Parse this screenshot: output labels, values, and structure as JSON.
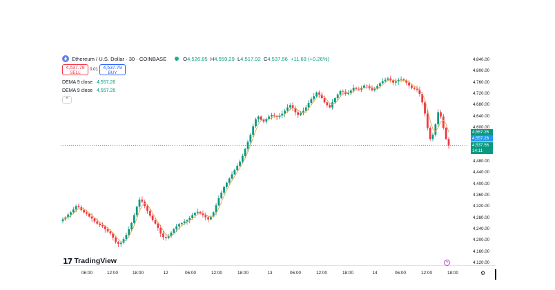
{
  "header": {
    "symbol": "Ethereum / U.S. Dollar · 30 · COINBASE",
    "open_key": "O",
    "open": "4,526.85",
    "high_key": "H",
    "high": "4,559.29",
    "low_key": "L",
    "low": "4,517.92",
    "close_key": "C",
    "close": "4,537.56",
    "change": "+11.69 (+0.26%)"
  },
  "trade": {
    "sell_price": "4,537.78",
    "sell_label": "SELL",
    "spread": "0.01",
    "buy_price": "4,537.79",
    "buy_label": "BUY"
  },
  "indicators": [
    {
      "name": "DEMA 9 close",
      "value": "4,557.26"
    },
    {
      "name": "DEMA 9 close",
      "value": "4,557.26"
    }
  ],
  "collapse_glyph": "⌃",
  "price_axis": {
    "ticks": [
      "4,840.00",
      "4,800.00",
      "4,760.00",
      "4,720.00",
      "4,680.00",
      "4,640.00",
      "4,600.00",
      "4,520.00",
      "4,480.00",
      "4,440.00",
      "4,400.00",
      "4,360.00",
      "4,320.00",
      "4,280.00",
      "4,240.00",
      "4,200.00",
      "4,160.00",
      "4,120.00"
    ],
    "tick_values": [
      4840,
      4800,
      4760,
      4720,
      4680,
      4640,
      4600,
      4520,
      4480,
      4440,
      4400,
      4360,
      4320,
      4280,
      4240,
      4200,
      4160,
      4120
    ],
    "labels": [
      {
        "text": "4,557.26",
        "color": "#089981"
      },
      {
        "text": "4,557.26",
        "color": "#2196f3"
      },
      {
        "text": "4,537.56",
        "color": "#089981"
      },
      {
        "text": "14:11",
        "color": "#089981"
      }
    ],
    "current_price": 4537.56
  },
  "time_axis": {
    "ticks": [
      "06:00",
      "12:00",
      "18:00",
      "12",
      "06:00",
      "12:00",
      "18:00",
      "13",
      "06:00",
      "12:00",
      "18:00",
      "14",
      "06:00",
      "12:00",
      "18:00"
    ]
  },
  "logo": {
    "mark": "17",
    "text": "TradingView"
  },
  "icons": {
    "gear": "⚙",
    "flash": "ϟ"
  },
  "colors": {
    "up": "#089981",
    "down": "#f23645",
    "ma": "#e0a64a",
    "accent": "#2962ff"
  },
  "chart_data": {
    "type": "candlestick",
    "interval": "30",
    "ylim": [
      4120,
      4840
    ],
    "series": [
      {
        "name": "Ethereum / U.S. Dollar",
        "values": [
          4275,
          4282,
          4292,
          4300,
          4310,
          4322,
          4318,
          4308,
          4300,
          4295,
          4285,
          4278,
          4268,
          4260,
          4255,
          4250,
          4240,
          4232,
          4225,
          4210,
          4195,
          4188,
          4192,
          4205,
          4220,
          4240,
          4262,
          4290,
          4320,
          4345,
          4338,
          4322,
          4305,
          4288,
          4272,
          4260,
          4245,
          4225,
          4212,
          4208,
          4215,
          4228,
          4240,
          4250,
          4258,
          4262,
          4268,
          4272,
          4280,
          4290,
          4298,
          4302,
          4296,
          4290,
          4282,
          4275,
          4285,
          4300,
          4325,
          4350,
          4370,
          4390,
          4405,
          4420,
          4435,
          4450,
          4465,
          4480,
          4500,
          4525,
          4550,
          4575,
          4605,
          4630,
          4640,
          4628,
          4622,
          4632,
          4640,
          4645,
          4642,
          4638,
          4643,
          4650,
          4660,
          4672,
          4680,
          4670,
          4655,
          4645,
          4652,
          4660,
          4672,
          4688,
          4702,
          4712,
          4725,
          4718,
          4705,
          4690,
          4680,
          4672,
          4690,
          4705,
          4718,
          4730,
          4728,
          4720,
          4722,
          4732,
          4742,
          4738,
          4735,
          4742,
          4750,
          4748,
          4740,
          4733,
          4738,
          4748,
          4758,
          4765,
          4770,
          4775,
          4768,
          4760,
          4764,
          4770,
          4772,
          4768,
          4760,
          4750,
          4742,
          4738,
          4735,
          4720,
          4690,
          4650,
          4600,
          4560,
          4575,
          4612,
          4655,
          4640,
          4600,
          4560,
          4537
        ]
      }
    ]
  }
}
